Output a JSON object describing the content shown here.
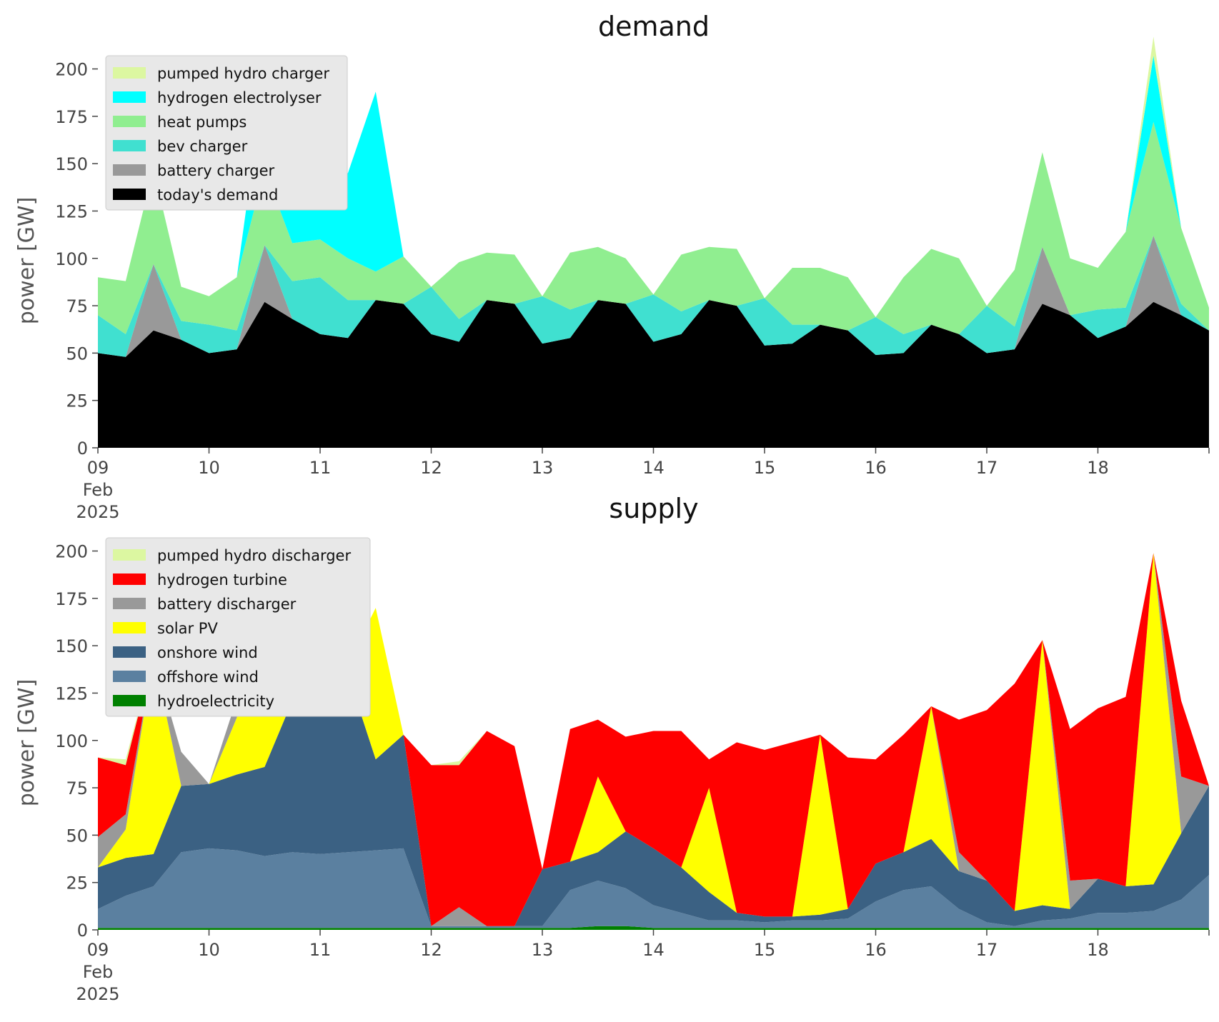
{
  "chart_data": [
    {
      "type": "area",
      "stacked": true,
      "title": "demand",
      "ylabel": "power [GW]",
      "xlabel": "",
      "ylim": [
        0,
        210
      ],
      "yticks": [
        0,
        25,
        50,
        75,
        100,
        125,
        150,
        175,
        200
      ],
      "xlim": [
        "2025-02-09",
        "2025-02-19"
      ],
      "xticks": [
        {
          "at": "2025-02-09",
          "lines": [
            "09",
            "Feb",
            "2025"
          ]
        },
        {
          "at": "2025-02-10",
          "lines": [
            "10"
          ]
        },
        {
          "at": "2025-02-11",
          "lines": [
            "11"
          ]
        },
        {
          "at": "2025-02-12",
          "lines": [
            "12"
          ]
        },
        {
          "at": "2025-02-13",
          "lines": [
            "13"
          ]
        },
        {
          "at": "2025-02-14",
          "lines": [
            "14"
          ]
        },
        {
          "at": "2025-02-15",
          "lines": [
            "15"
          ]
        },
        {
          "at": "2025-02-16",
          "lines": [
            "16"
          ]
        },
        {
          "at": "2025-02-17",
          "lines": [
            "17"
          ]
        },
        {
          "at": "2025-02-18",
          "lines": [
            "18"
          ]
        }
      ],
      "legend_position": "top-left",
      "legend_order": [
        "pumped hydro charger",
        "hydrogen electrolyser",
        "heat pumps",
        "bev charger",
        "battery charger",
        "today's demand"
      ],
      "x": [
        "2025-02-09 00:00",
        "2025-02-09 06:00",
        "2025-02-09 12:00",
        "2025-02-09 18:00",
        "2025-02-10 00:00",
        "2025-02-10 06:00",
        "2025-02-10 12:00",
        "2025-02-10 18:00",
        "2025-02-11 00:00",
        "2025-02-11 06:00",
        "2025-02-11 12:00",
        "2025-02-11 18:00",
        "2025-02-12 00:00",
        "2025-02-12 06:00",
        "2025-02-12 12:00",
        "2025-02-12 18:00",
        "2025-02-13 00:00",
        "2025-02-13 06:00",
        "2025-02-13 12:00",
        "2025-02-13 18:00",
        "2025-02-14 00:00",
        "2025-02-14 06:00",
        "2025-02-14 12:00",
        "2025-02-14 18:00",
        "2025-02-15 00:00",
        "2025-02-15 06:00",
        "2025-02-15 12:00",
        "2025-02-15 18:00",
        "2025-02-16 00:00",
        "2025-02-16 06:00",
        "2025-02-16 12:00",
        "2025-02-16 18:00",
        "2025-02-17 00:00",
        "2025-02-17 06:00",
        "2025-02-17 12:00",
        "2025-02-17 18:00",
        "2025-02-18 00:00",
        "2025-02-18 06:00",
        "2025-02-18 12:00",
        "2025-02-18 18:00",
        "2025-02-19 00:00"
      ],
      "series": [
        {
          "name": "today's demand",
          "color": "#000000",
          "values": [
            50,
            48,
            62,
            57,
            50,
            52,
            77,
            68,
            60,
            58,
            78,
            76,
            60,
            56,
            78,
            76,
            55,
            58,
            78,
            76,
            56,
            60,
            78,
            75,
            54,
            55,
            65,
            62,
            49,
            50,
            65,
            60,
            50,
            52,
            76,
            70,
            58,
            64,
            77,
            70,
            62
          ]
        },
        {
          "name": "battery charger",
          "color": "#999999",
          "values": [
            0,
            0,
            35,
            0,
            0,
            0,
            30,
            0,
            0,
            0,
            0,
            0,
            0,
            0,
            0,
            0,
            0,
            0,
            0,
            0,
            0,
            0,
            0,
            0,
            0,
            0,
            0,
            0,
            0,
            0,
            0,
            0,
            0,
            0,
            30,
            0,
            0,
            0,
            35,
            0,
            0
          ]
        },
        {
          "name": "bev charger",
          "color": "#40e0d0",
          "values": [
            20,
            12,
            0,
            10,
            15,
            10,
            0,
            20,
            30,
            20,
            0,
            0,
            25,
            12,
            0,
            0,
            25,
            15,
            0,
            0,
            25,
            12,
            0,
            0,
            25,
            10,
            0,
            0,
            20,
            10,
            0,
            0,
            25,
            12,
            0,
            0,
            15,
            10,
            0,
            6,
            0
          ]
        },
        {
          "name": "heat pumps",
          "color": "#90ee90",
          "values": [
            20,
            28,
            50,
            18,
            15,
            28,
            40,
            20,
            20,
            22,
            15,
            25,
            0,
            30,
            25,
            26,
            0,
            30,
            28,
            24,
            0,
            30,
            28,
            30,
            0,
            30,
            30,
            28,
            0,
            30,
            40,
            40,
            0,
            30,
            50,
            30,
            22,
            40,
            60,
            40,
            12
          ]
        },
        {
          "name": "hydrogen electrolyser",
          "color": "#00ffff",
          "values": [
            0,
            0,
            0,
            0,
            0,
            0,
            50,
            35,
            35,
            45,
            95,
            0,
            0,
            0,
            0,
            0,
            0,
            0,
            0,
            0,
            0,
            0,
            0,
            0,
            0,
            0,
            0,
            0,
            0,
            0,
            0,
            0,
            0,
            0,
            0,
            0,
            0,
            0,
            35,
            0,
            0
          ]
        },
        {
          "name": "pumped hydro charger",
          "color": "#dcf7a1",
          "values": [
            0,
            0,
            0,
            0,
            0,
            0,
            0,
            0,
            0,
            0,
            0,
            0,
            0,
            0,
            0,
            0,
            0,
            0,
            0,
            0,
            0,
            0,
            0,
            0,
            0,
            0,
            0,
            0,
            0,
            0,
            0,
            0,
            0,
            0,
            0,
            0,
            0,
            0,
            10,
            0,
            0
          ]
        }
      ]
    },
    {
      "type": "area",
      "stacked": true,
      "title": "supply",
      "ylabel": "power [GW]",
      "xlabel": "",
      "ylim": [
        0,
        210
      ],
      "yticks": [
        0,
        25,
        50,
        75,
        100,
        125,
        150,
        175,
        200
      ],
      "xlim": [
        "2025-02-09",
        "2025-02-19"
      ],
      "xticks": [
        {
          "at": "2025-02-09",
          "lines": [
            "09",
            "Feb",
            "2025"
          ]
        },
        {
          "at": "2025-02-10",
          "lines": [
            "10"
          ]
        },
        {
          "at": "2025-02-11",
          "lines": [
            "11"
          ]
        },
        {
          "at": "2025-02-12",
          "lines": [
            "12"
          ]
        },
        {
          "at": "2025-02-13",
          "lines": [
            "13"
          ]
        },
        {
          "at": "2025-02-14",
          "lines": [
            "14"
          ]
        },
        {
          "at": "2025-02-15",
          "lines": [
            "15"
          ]
        },
        {
          "at": "2025-02-16",
          "lines": [
            "16"
          ]
        },
        {
          "at": "2025-02-17",
          "lines": [
            "17"
          ]
        },
        {
          "at": "2025-02-18",
          "lines": [
            "18"
          ]
        }
      ],
      "legend_position": "top-left",
      "legend_order": [
        "pumped hydro discharger",
        "hydrogen turbine",
        "battery discharger",
        "solar PV",
        "onshore wind",
        "offshore wind",
        "hydroelectricity"
      ],
      "x": [
        "2025-02-09 00:00",
        "2025-02-09 06:00",
        "2025-02-09 12:00",
        "2025-02-09 18:00",
        "2025-02-10 00:00",
        "2025-02-10 06:00",
        "2025-02-10 12:00",
        "2025-02-10 18:00",
        "2025-02-11 00:00",
        "2025-02-11 06:00",
        "2025-02-11 12:00",
        "2025-02-11 18:00",
        "2025-02-12 00:00",
        "2025-02-12 06:00",
        "2025-02-12 12:00",
        "2025-02-12 18:00",
        "2025-02-13 00:00",
        "2025-02-13 06:00",
        "2025-02-13 12:00",
        "2025-02-13 18:00",
        "2025-02-14 00:00",
        "2025-02-14 06:00",
        "2025-02-14 12:00",
        "2025-02-14 18:00",
        "2025-02-15 00:00",
        "2025-02-15 06:00",
        "2025-02-15 12:00",
        "2025-02-15 18:00",
        "2025-02-16 00:00",
        "2025-02-16 06:00",
        "2025-02-16 12:00",
        "2025-02-16 18:00",
        "2025-02-17 00:00",
        "2025-02-17 06:00",
        "2025-02-17 12:00",
        "2025-02-17 18:00",
        "2025-02-18 00:00",
        "2025-02-18 06:00",
        "2025-02-18 12:00",
        "2025-02-18 18:00",
        "2025-02-19 00:00"
      ],
      "series": [
        {
          "name": "hydroelectricity",
          "color": "#008000",
          "values": [
            1,
            1,
            1,
            1,
            1,
            1,
            1,
            1,
            1,
            1,
            1,
            1,
            1,
            1,
            1,
            1,
            1,
            1,
            2,
            2,
            1,
            1,
            1,
            1,
            1,
            1,
            1,
            1,
            1,
            1,
            1,
            1,
            1,
            1,
            1,
            1,
            1,
            1,
            1,
            1,
            1
          ]
        },
        {
          "name": "offshore wind",
          "color": "#5b80a0",
          "values": [
            10,
            17,
            22,
            40,
            42,
            41,
            38,
            40,
            39,
            40,
            41,
            42,
            1,
            1,
            1,
            1,
            1,
            20,
            24,
            20,
            12,
            8,
            4,
            4,
            3,
            4,
            4,
            5,
            14,
            20,
            22,
            10,
            3,
            1,
            4,
            5,
            8,
            8,
            9,
            15,
            28
          ]
        },
        {
          "name": "onshore wind",
          "color": "#3b6183",
          "values": [
            22,
            20,
            17,
            35,
            34,
            40,
            47,
            80,
            96,
            94,
            48,
            60,
            0,
            0,
            0,
            0,
            30,
            15,
            15,
            30,
            30,
            24,
            15,
            4,
            3,
            2,
            3,
            5,
            20,
            20,
            25,
            20,
            22,
            8,
            8,
            5,
            18,
            14,
            14,
            35,
            47
          ]
        },
        {
          "name": "solar PV",
          "color": "#ffff00",
          "values": [
            0,
            15,
            105,
            0,
            0,
            30,
            80,
            0,
            0,
            5,
            80,
            0,
            0,
            0,
            0,
            0,
            0,
            0,
            40,
            0,
            0,
            0,
            55,
            0,
            0,
            0,
            95,
            0,
            0,
            0,
            70,
            0,
            0,
            0,
            140,
            0,
            0,
            0,
            175,
            0,
            0
          ]
        },
        {
          "name": "battery discharger",
          "color": "#999999",
          "values": [
            16,
            8,
            0,
            18,
            0,
            10,
            0,
            0,
            0,
            0,
            0,
            0,
            0,
            10,
            0,
            0,
            0,
            0,
            0,
            0,
            0,
            0,
            0,
            0,
            0,
            0,
            0,
            0,
            0,
            0,
            0,
            10,
            0,
            0,
            0,
            15,
            0,
            0,
            0,
            30,
            0
          ]
        },
        {
          "name": "hydrogen turbine",
          "color": "#ff0000",
          "values": [
            42,
            26,
            0,
            0,
            0,
            0,
            0,
            0,
            0,
            0,
            0,
            0,
            85,
            75,
            103,
            95,
            0,
            70,
            30,
            50,
            62,
            72,
            15,
            90,
            88,
            92,
            0,
            80,
            55,
            62,
            0,
            70,
            90,
            120,
            0,
            80,
            90,
            100,
            0,
            40,
            0
          ]
        },
        {
          "name": "pumped hydro discharger",
          "color": "#dcf7a1",
          "values": [
            0,
            3,
            0,
            0,
            0,
            0,
            0,
            0,
            0,
            0,
            0,
            0,
            0,
            2,
            0,
            0,
            0,
            0,
            0,
            0,
            0,
            0,
            0,
            0,
            0,
            0,
            0,
            0,
            0,
            0,
            0,
            0,
            0,
            0,
            0,
            0,
            0,
            0,
            0,
            0,
            0
          ]
        }
      ]
    }
  ]
}
